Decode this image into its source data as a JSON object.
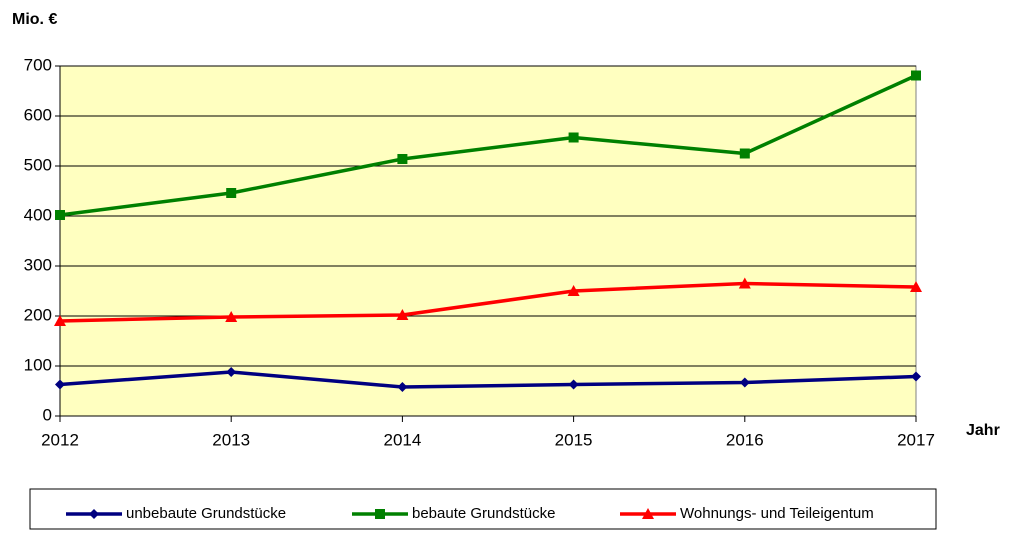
{
  "chart_data": {
    "type": "line",
    "y_label": "Mio. €",
    "x_label": "Jahr",
    "x": [
      2012,
      2013,
      2014,
      2015,
      2016,
      2017
    ],
    "xlim": [
      2012,
      2017
    ],
    "xticks": [
      2012,
      2013,
      2014,
      2015,
      2016,
      2017
    ],
    "ylim": [
      0,
      700
    ],
    "yticks": [
      0,
      100,
      200,
      300,
      400,
      500,
      600,
      700
    ],
    "grid": true,
    "legend": "bottom",
    "plot_background": "#ffffc0",
    "series": [
      {
        "name": "unbebaute Grundstücke",
        "color": "#000080",
        "marker": "diamond",
        "values": [
          63,
          88,
          58,
          63,
          67,
          79
        ]
      },
      {
        "name": "bebaute Grundstücke",
        "color": "#008000",
        "marker": "square",
        "values": [
          402,
          446,
          514,
          557,
          525,
          681
        ]
      },
      {
        "name": "Wohnungs- und Teileigentum",
        "color": "#ff0000",
        "marker": "triangle",
        "values": [
          190,
          198,
          202,
          250,
          265,
          258
        ]
      }
    ]
  }
}
